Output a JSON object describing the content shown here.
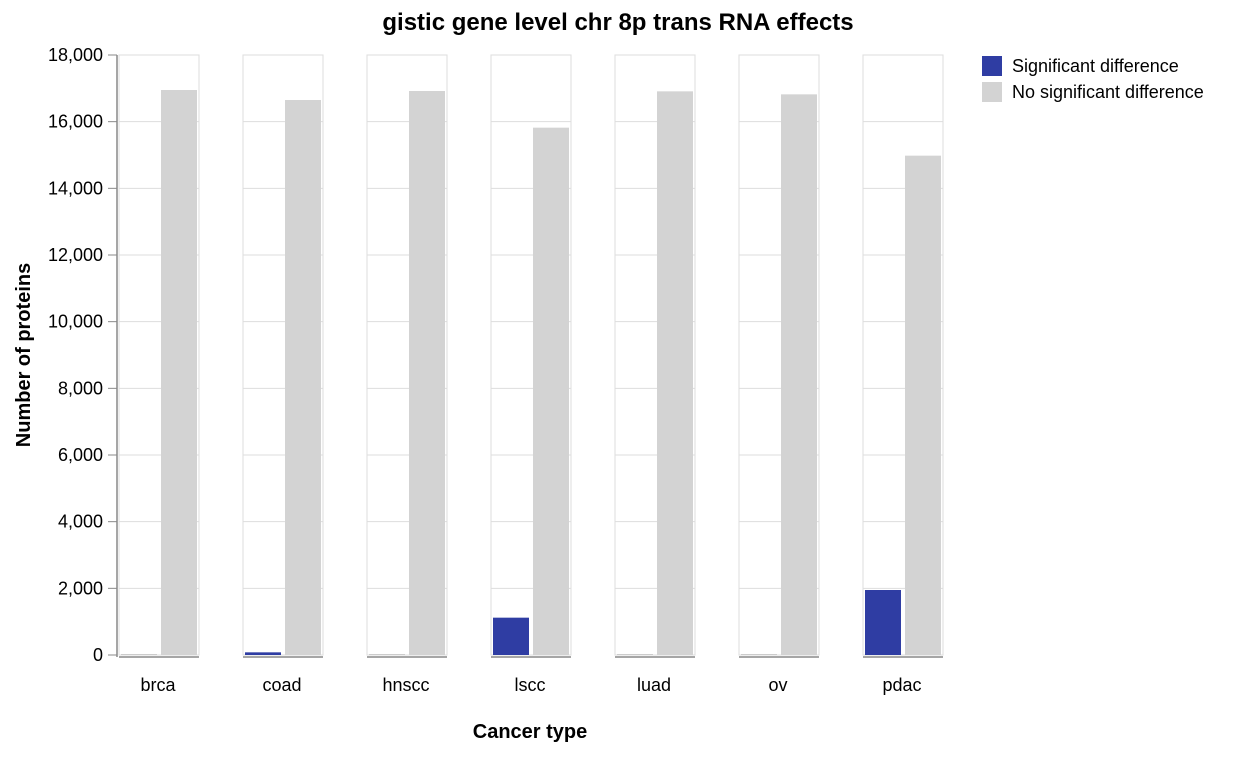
{
  "chart_data": {
    "type": "bar",
    "title": "gistic gene level chr 8p trans RNA effects",
    "xlabel": "Cancer type",
    "ylabel": "Number of proteins",
    "ylim": [
      0,
      18000
    ],
    "yticks": [
      0,
      2000,
      4000,
      6000,
      8000,
      10000,
      12000,
      14000,
      16000,
      18000
    ],
    "ytick_labels": [
      "0",
      "2,000",
      "4,000",
      "6,000",
      "8,000",
      "10,000",
      "12,000",
      "14,000",
      "16,000",
      "18,000"
    ],
    "grid": true,
    "legend_position": "top-right",
    "categories": [
      "brca",
      "coad",
      "hnscc",
      "lscc",
      "luad",
      "ov",
      "pdac"
    ],
    "series": [
      {
        "name": "Significant difference",
        "color": "#2f3da3",
        "values": [
          0,
          80,
          0,
          1120,
          0,
          0,
          1950
        ]
      },
      {
        "name": "No significant difference",
        "color": "#d3d3d3",
        "values": [
          16950,
          16650,
          16920,
          15820,
          16910,
          16820,
          14980
        ]
      }
    ]
  }
}
